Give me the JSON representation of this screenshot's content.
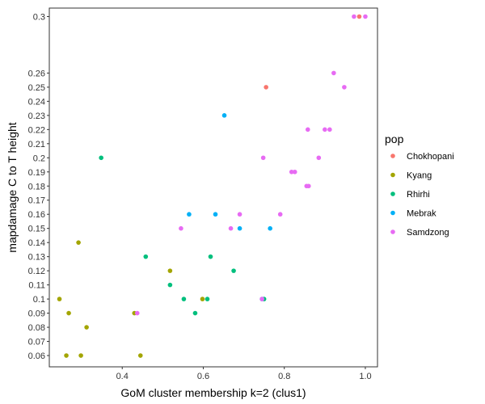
{
  "chart_data": {
    "type": "scatter",
    "xlabel": "GoM cluster membership k=2 (clus1)",
    "ylabel": "mapdamage C to T height",
    "xlim": [
      0.22,
      1.03
    ],
    "ylim": [
      0.052,
      0.306
    ],
    "xticks": [
      "0.4",
      "0.6",
      "0.8",
      "1.0"
    ],
    "yticks": [
      "0.06",
      "0.07",
      "0.08",
      "0.09",
      "0.1",
      "0.11",
      "0.12",
      "0.13",
      "0.14",
      "0.15",
      "0.16",
      "0.17",
      "0.18",
      "0.19",
      "0.2",
      "0.21",
      "0.22",
      "0.23",
      "0.24",
      "0.25",
      "0.26",
      "0.3"
    ],
    "legend_title": "pop",
    "legend_position": "right",
    "grid": false,
    "series": [
      {
        "name": "Chokhopani",
        "color": "#F8766D",
        "points": [
          [
            0.755,
            0.25
          ],
          [
            0.985,
            0.3
          ]
        ]
      },
      {
        "name": "Kyang",
        "color": "#A3A500",
        "points": [
          [
            0.245,
            0.1
          ],
          [
            0.262,
            0.06
          ],
          [
            0.268,
            0.09
          ],
          [
            0.292,
            0.14
          ],
          [
            0.298,
            0.06
          ],
          [
            0.312,
            0.08
          ],
          [
            0.43,
            0.09
          ],
          [
            0.445,
            0.06
          ],
          [
            0.518,
            0.12
          ],
          [
            0.598,
            0.1
          ]
        ]
      },
      {
        "name": "Rhirhi",
        "color": "#00BF7D",
        "points": [
          [
            0.348,
            0.2
          ],
          [
            0.458,
            0.13
          ],
          [
            0.518,
            0.11
          ],
          [
            0.552,
            0.1
          ],
          [
            0.58,
            0.09
          ],
          [
            0.61,
            0.1
          ],
          [
            0.618,
            0.13
          ],
          [
            0.675,
            0.12
          ],
          [
            0.75,
            0.1
          ]
        ]
      },
      {
        "name": "Mebrak",
        "color": "#00B0F6",
        "points": [
          [
            0.565,
            0.16
          ],
          [
            0.63,
            0.16
          ],
          [
            0.652,
            0.23
          ],
          [
            0.69,
            0.15
          ],
          [
            0.745,
            0.1
          ],
          [
            0.765,
            0.15
          ]
        ]
      },
      {
        "name": "Samdzong",
        "color": "#E76BF3",
        "points": [
          [
            0.437,
            0.09
          ],
          [
            0.545,
            0.15
          ],
          [
            0.668,
            0.15
          ],
          [
            0.69,
            0.16
          ],
          [
            0.745,
            0.1
          ],
          [
            0.748,
            0.2
          ],
          [
            0.79,
            0.16
          ],
          [
            0.818,
            0.19
          ],
          [
            0.826,
            0.19
          ],
          [
            0.855,
            0.18
          ],
          [
            0.86,
            0.18
          ],
          [
            0.858,
            0.22
          ],
          [
            0.885,
            0.2
          ],
          [
            0.9,
            0.22
          ],
          [
            0.912,
            0.22
          ],
          [
            0.922,
            0.26
          ],
          [
            0.948,
            0.25
          ],
          [
            0.972,
            0.3
          ],
          [
            1.0,
            0.3
          ]
        ]
      }
    ]
  }
}
